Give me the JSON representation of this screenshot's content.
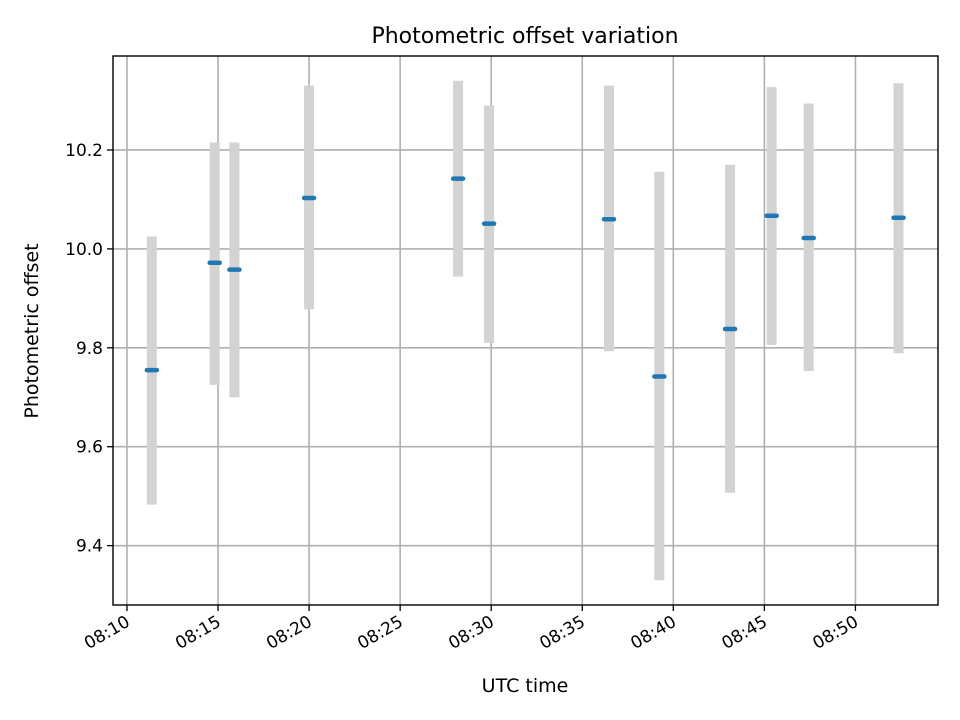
{
  "chart_data": {
    "type": "scatter",
    "title": "Photometric offset variation",
    "xlabel": "UTC time",
    "ylabel": "Photometric offset",
    "x_ticks": [
      "08:10",
      "08:15",
      "08:20",
      "08:25",
      "08:30",
      "08:35",
      "08:40",
      "08:45",
      "08:50"
    ],
    "y_ticks": [
      "9.4",
      "9.6",
      "9.8",
      "10.0",
      "10.2"
    ],
    "xlim": [
      "08:09:14",
      "08:54:32"
    ],
    "ylim": [
      9.28,
      10.39
    ],
    "grid": true,
    "marker_color": "#1f77b4",
    "errorbar_color": "#d3d3d3",
    "points": [
      {
        "time": "08:11:22",
        "y": 9.755,
        "ylo": 9.483,
        "yhi": 10.025
      },
      {
        "time": "08:14:49",
        "y": 9.972,
        "ylo": 9.725,
        "yhi": 10.215
      },
      {
        "time": "08:15:54",
        "y": 9.958,
        "ylo": 9.7,
        "yhi": 10.215
      },
      {
        "time": "08:20:00",
        "y": 10.103,
        "ylo": 9.878,
        "yhi": 10.33
      },
      {
        "time": "08:28:11",
        "y": 10.142,
        "ylo": 9.944,
        "yhi": 10.34
      },
      {
        "time": "08:29:53",
        "y": 10.051,
        "ylo": 9.81,
        "yhi": 10.29
      },
      {
        "time": "08:36:28",
        "y": 10.06,
        "ylo": 9.793,
        "yhi": 10.33
      },
      {
        "time": "08:39:14",
        "y": 9.742,
        "ylo": 9.33,
        "yhi": 10.156
      },
      {
        "time": "08:43:07",
        "y": 9.838,
        "ylo": 9.507,
        "yhi": 10.17
      },
      {
        "time": "08:45:24",
        "y": 10.067,
        "ylo": 9.806,
        "yhi": 10.327
      },
      {
        "time": "08:47:26",
        "y": 10.022,
        "ylo": 9.753,
        "yhi": 10.294
      },
      {
        "time": "08:52:22",
        "y": 10.063,
        "ylo": 9.789,
        "yhi": 10.335
      }
    ]
  }
}
